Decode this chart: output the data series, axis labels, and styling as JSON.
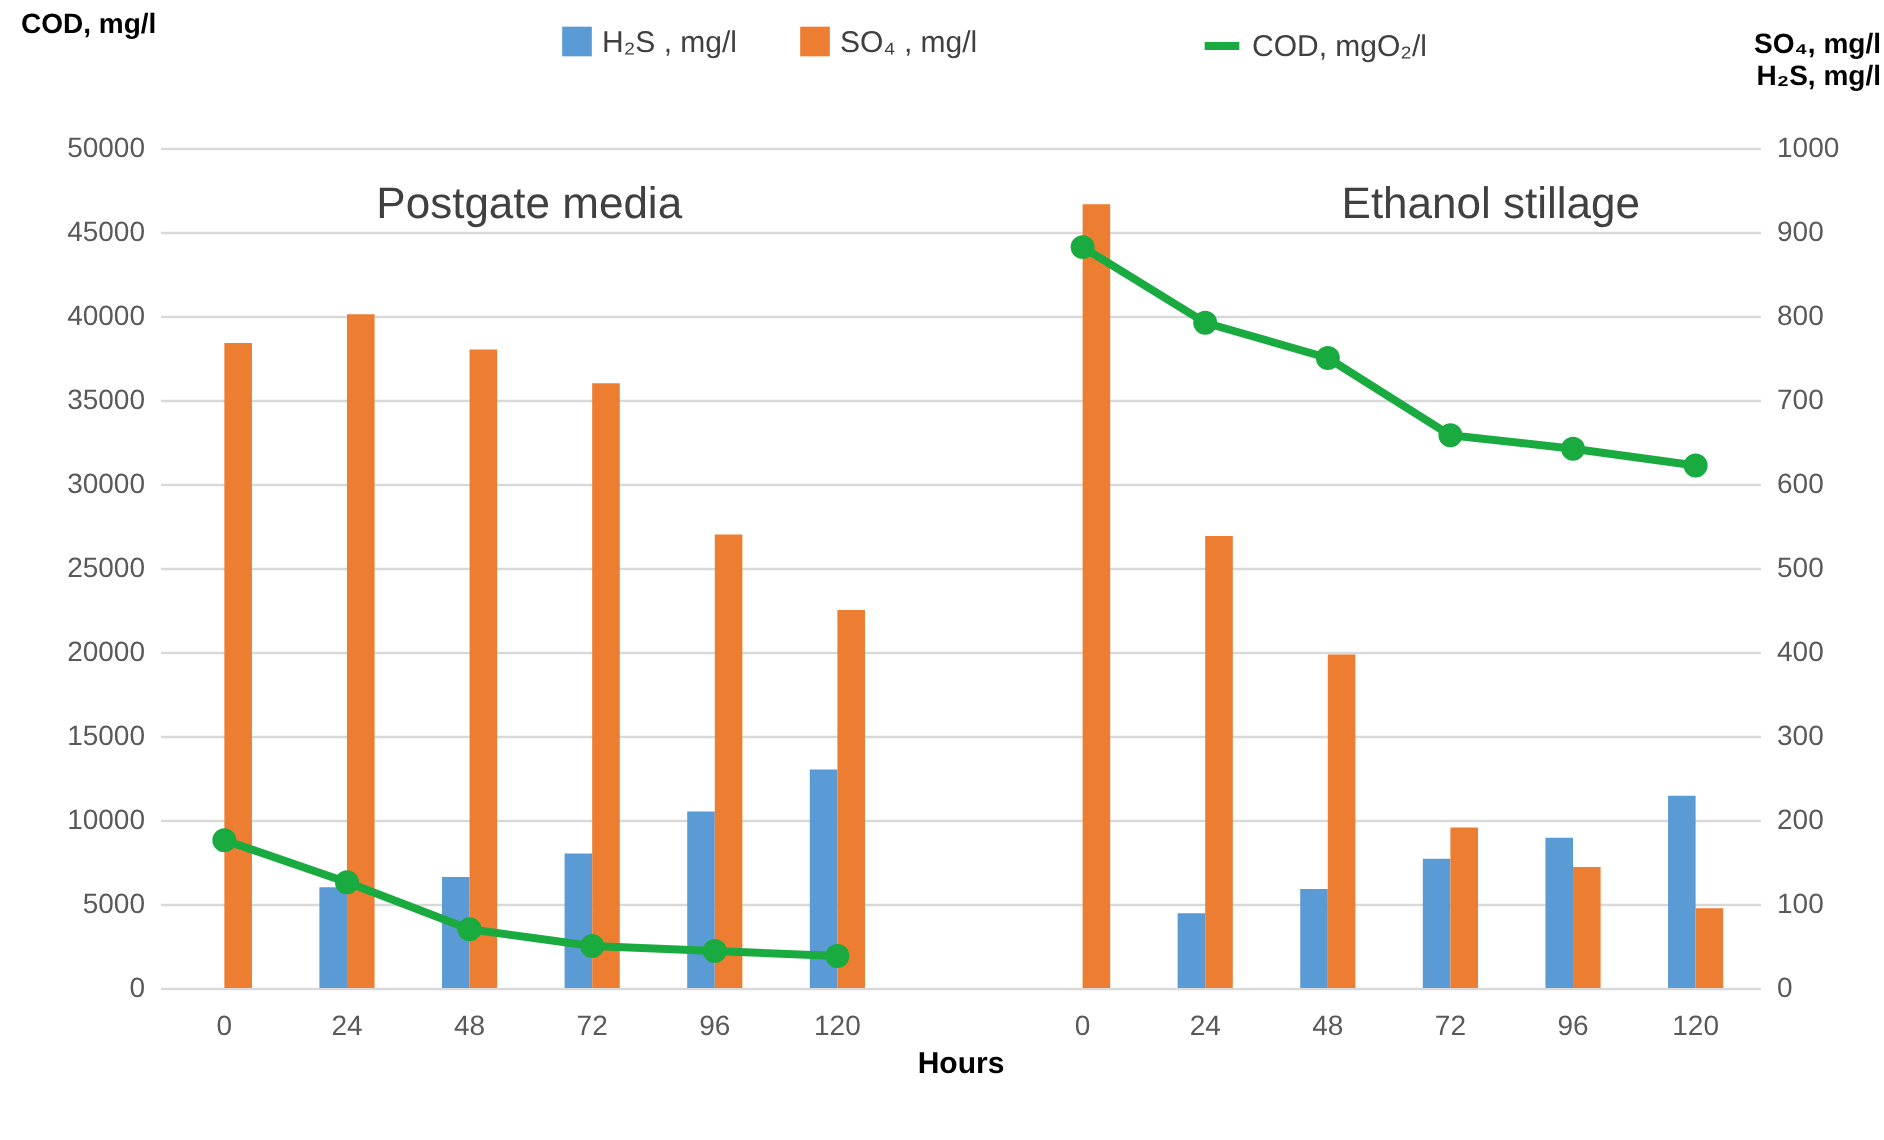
{
  "chart_data": {
    "type": "bar",
    "xlabel": "Hours",
    "ylabel": "COD, mg/l",
    "y2label": "SO₄, mg/l\nH₂S, mg/l",
    "annotations": [
      "Postgate media",
      "Ethanol stillage"
    ],
    "categories": [
      "0",
      "24",
      "48",
      "72",
      "96",
      "120",
      null,
      "0",
      "24",
      "48",
      "72",
      "96",
      "120"
    ],
    "series": [
      {
        "name": "H₂S , mg/l",
        "color": "#5b9bd5",
        "axis": "y2",
        "values": [
          null,
          120,
          132,
          160,
          210,
          260,
          null,
          null,
          89,
          118,
          154,
          179,
          229
        ]
      },
      {
        "name": "SO₄ , mg/l",
        "color": "#ed7d31",
        "axis": "y2",
        "values": [
          768,
          802,
          760,
          720,
          540,
          450,
          null,
          933,
          538,
          397,
          191,
          144,
          95
        ]
      },
      {
        "name": "COD, mgO₂/l",
        "color": "#1aab40",
        "type": "line",
        "values": [
          8800,
          6300,
          3500,
          2500,
          2200,
          1900,
          null,
          44100,
          39600,
          37500,
          32900,
          32100,
          31100
        ]
      }
    ],
    "ylim": [
      0,
      50000
    ],
    "yticks": [
      0,
      5000,
      10000,
      15000,
      20000,
      25000,
      30000,
      35000,
      40000,
      45000,
      50000
    ],
    "y2lim": [
      0,
      1000
    ],
    "y2ticks": [
      0,
      100,
      200,
      300,
      400,
      500,
      600,
      700,
      800,
      900,
      1000
    ],
    "grid": "y",
    "legend": "top",
    "marker": "circle"
  }
}
